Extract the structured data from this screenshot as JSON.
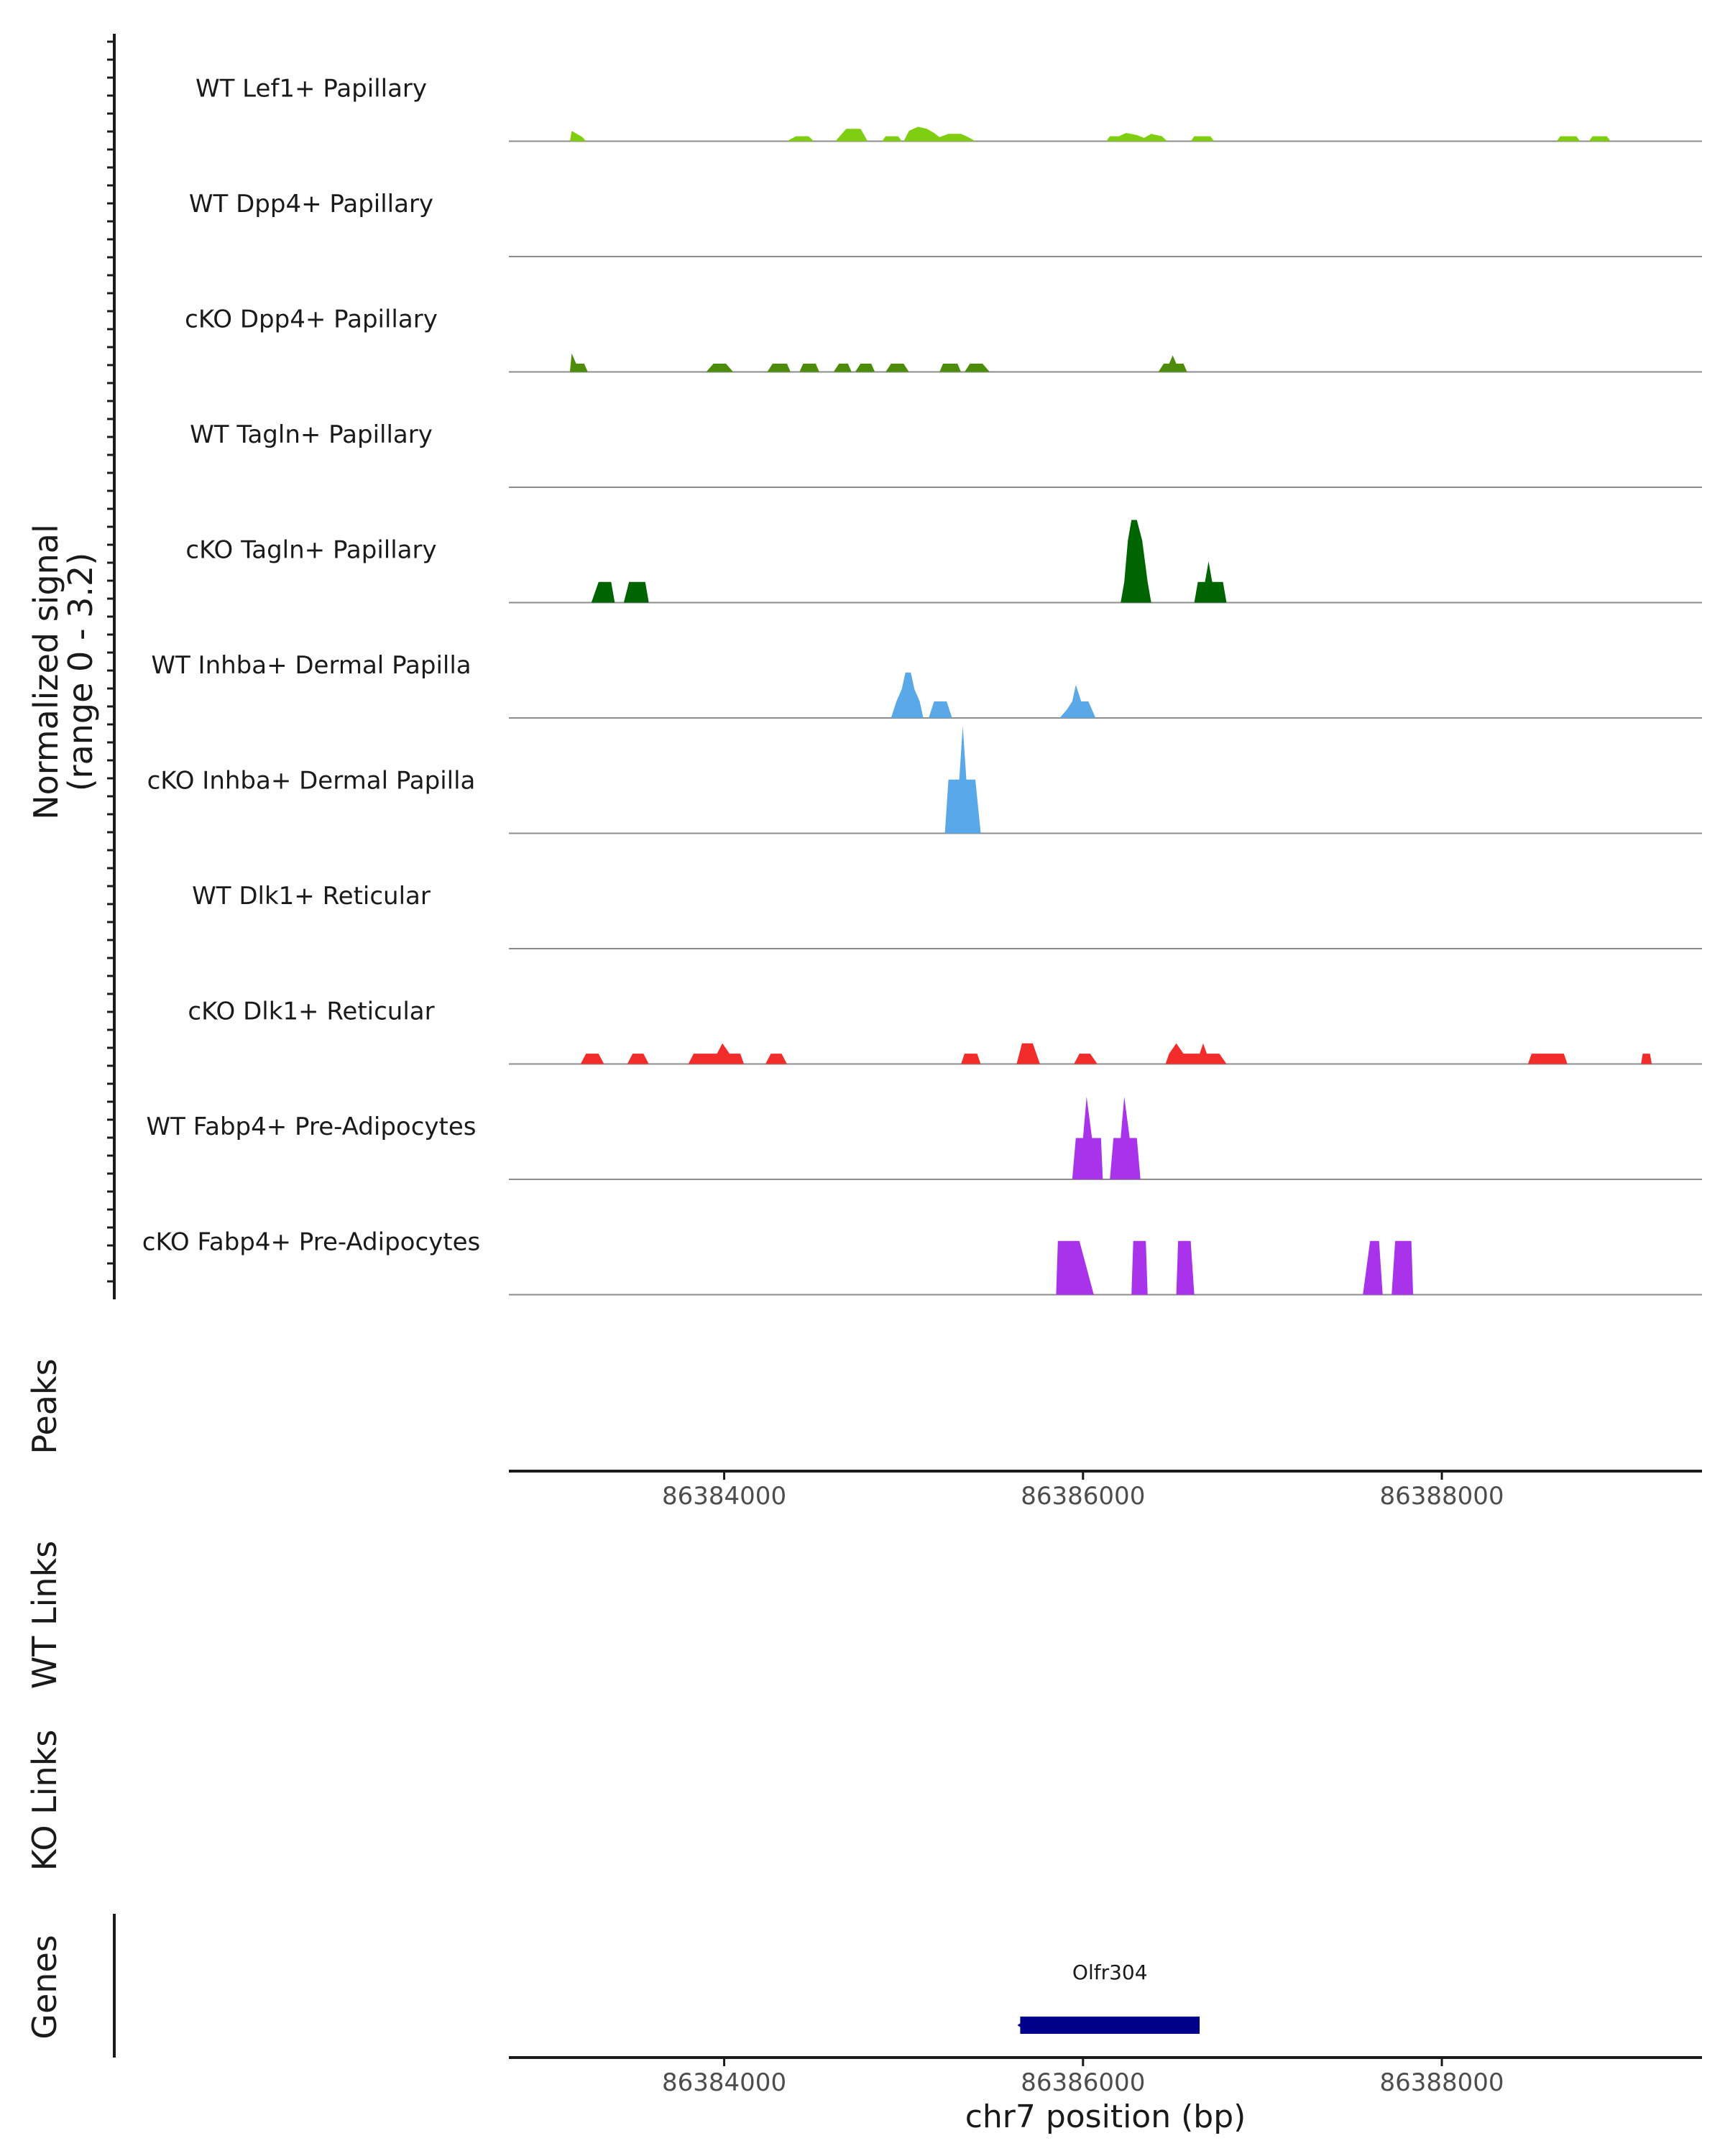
{
  "chart_data": {
    "type": "area",
    "title": "",
    "chromosome": "chr7",
    "xlim": [
      86382800,
      86389450
    ],
    "ylim": [
      0,
      3.2
    ],
    "signal_ylabel": [
      "Normalized signal",
      "(range 0 - 3.2)"
    ],
    "xlabel": "chr7 position (bp)",
    "xticks": [
      86384000,
      86386000,
      86388000
    ],
    "xtick_labels": [
      "86384000",
      "86386000",
      "86388000"
    ],
    "tracks": [
      {
        "name": "WT Lef1+ Papillary",
        "color": "#7FCE0F",
        "points": [
          [
            86383140,
            0
          ],
          [
            86383150,
            0.25
          ],
          [
            86383210,
            0.1
          ],
          [
            86383230,
            0
          ],
          [
            86384350,
            0
          ],
          [
            86384400,
            0.12
          ],
          [
            86384470,
            0.12
          ],
          [
            86384500,
            0
          ],
          [
            86384620,
            0
          ],
          [
            86384680,
            0.3
          ],
          [
            86384760,
            0.3
          ],
          [
            86384800,
            0
          ],
          [
            86384880,
            0
          ],
          [
            86384900,
            0.12
          ],
          [
            86384970,
            0.12
          ],
          [
            86384990,
            0
          ],
          [
            86385000,
            0
          ],
          [
            86385030,
            0.25
          ],
          [
            86385080,
            0.35
          ],
          [
            86385130,
            0.3
          ],
          [
            86385170,
            0.2
          ],
          [
            86385200,
            0.1
          ],
          [
            86385250,
            0.18
          ],
          [
            86385320,
            0.18
          ],
          [
            86385360,
            0.1
          ],
          [
            86385400,
            0
          ],
          [
            86386130,
            0
          ],
          [
            86386150,
            0.12
          ],
          [
            86386200,
            0.12
          ],
          [
            86386240,
            0.2
          ],
          [
            86386300,
            0.15
          ],
          [
            86386340,
            0.08
          ],
          [
            86386380,
            0.18
          ],
          [
            86386440,
            0.12
          ],
          [
            86386470,
            0
          ],
          [
            86386600,
            0
          ],
          [
            86386620,
            0.12
          ],
          [
            86386710,
            0.12
          ],
          [
            86386730,
            0
          ],
          [
            86388640,
            0
          ],
          [
            86388660,
            0.12
          ],
          [
            86388750,
            0.12
          ],
          [
            86388770,
            0
          ],
          [
            86388820,
            0
          ],
          [
            86388840,
            0.12
          ],
          [
            86388920,
            0.12
          ],
          [
            86388940,
            0
          ]
        ]
      },
      {
        "name": "WT Dpp4+ Papillary",
        "color": "#66B800",
        "points": []
      },
      {
        "name": "cKO Dpp4+ Papillary",
        "color": "#4D8C0A",
        "points": [
          [
            86383140,
            0
          ],
          [
            86383150,
            0.45
          ],
          [
            86383175,
            0.2
          ],
          [
            86383220,
            0.2
          ],
          [
            86383240,
            0
          ],
          [
            86383900,
            0
          ],
          [
            86383940,
            0.2
          ],
          [
            86384010,
            0.2
          ],
          [
            86384050,
            0
          ],
          [
            86384240,
            0
          ],
          [
            86384270,
            0.2
          ],
          [
            86384350,
            0.2
          ],
          [
            86384370,
            0
          ],
          [
            86384420,
            0
          ],
          [
            86384440,
            0.2
          ],
          [
            86384510,
            0.2
          ],
          [
            86384530,
            0
          ],
          [
            86384610,
            0
          ],
          [
            86384640,
            0.2
          ],
          [
            86384690,
            0.2
          ],
          [
            86384710,
            0
          ],
          [
            86384730,
            0
          ],
          [
            86384760,
            0.2
          ],
          [
            86384820,
            0.2
          ],
          [
            86384840,
            0
          ],
          [
            86384900,
            0
          ],
          [
            86384930,
            0.2
          ],
          [
            86385000,
            0.2
          ],
          [
            86385030,
            0
          ],
          [
            86385200,
            0
          ],
          [
            86385220,
            0.2
          ],
          [
            86385300,
            0.2
          ],
          [
            86385320,
            0
          ],
          [
            86385340,
            0
          ],
          [
            86385370,
            0.2
          ],
          [
            86385440,
            0.2
          ],
          [
            86385480,
            0
          ],
          [
            86386420,
            0
          ],
          [
            86386450,
            0.2
          ],
          [
            86386480,
            0.2
          ],
          [
            86386500,
            0.4
          ],
          [
            86386520,
            0.2
          ],
          [
            86386560,
            0.2
          ],
          [
            86386580,
            0
          ]
        ]
      },
      {
        "name": "WT Tagln+ Papillary",
        "color": "#2E7D0C",
        "points": []
      },
      {
        "name": "cKO Tagln+ Papillary",
        "color": "#006400",
        "points": [
          [
            86383260,
            0
          ],
          [
            86383300,
            0.5
          ],
          [
            86383370,
            0.5
          ],
          [
            86383390,
            0
          ],
          [
            86383440,
            0
          ],
          [
            86383470,
            0.5
          ],
          [
            86383560,
            0.5
          ],
          [
            86383580,
            0
          ],
          [
            86386210,
            0
          ],
          [
            86386230,
            0.5
          ],
          [
            86386250,
            1.5
          ],
          [
            86386270,
            2.0
          ],
          [
            86386300,
            2.0
          ],
          [
            86386330,
            1.5
          ],
          [
            86386360,
            0.5
          ],
          [
            86386380,
            0
          ],
          [
            86386620,
            0
          ],
          [
            86386640,
            0.5
          ],
          [
            86386680,
            0.5
          ],
          [
            86386700,
            1.0
          ],
          [
            86386720,
            0.5
          ],
          [
            86386780,
            0.5
          ],
          [
            86386800,
            0
          ]
        ]
      },
      {
        "name": "WT Inhba+ Dermal Papilla",
        "color": "#5AA8E8",
        "points": [
          [
            86384930,
            0
          ],
          [
            86384960,
            0.4
          ],
          [
            86384990,
            0.7
          ],
          [
            86385010,
            1.1
          ],
          [
            86385040,
            1.1
          ],
          [
            86385060,
            0.7
          ],
          [
            86385090,
            0.4
          ],
          [
            86385110,
            0
          ],
          [
            86385140,
            0
          ],
          [
            86385170,
            0.4
          ],
          [
            86385240,
            0.4
          ],
          [
            86385270,
            0
          ],
          [
            86385870,
            0
          ],
          [
            86385910,
            0.2
          ],
          [
            86385940,
            0.4
          ],
          [
            86385960,
            0.8
          ],
          [
            86385990,
            0.4
          ],
          [
            86386030,
            0.4
          ],
          [
            86386070,
            0
          ]
        ]
      },
      {
        "name": "cKO Inhba+ Dermal Papilla",
        "color": "#58A8EA",
        "points": [
          [
            86385230,
            0
          ],
          [
            86385250,
            1.3
          ],
          [
            86385310,
            1.3
          ],
          [
            86385330,
            2.6
          ],
          [
            86385350,
            1.3
          ],
          [
            86385400,
            1.3
          ],
          [
            86385430,
            0
          ]
        ]
      },
      {
        "name": "WT Dlk1+ Reticular",
        "color": "#E03030",
        "points": []
      },
      {
        "name": "cKO Dlk1+ Reticular",
        "color": "#F22B2B",
        "points": [
          [
            86383200,
            0
          ],
          [
            86383230,
            0.25
          ],
          [
            86383300,
            0.25
          ],
          [
            86383330,
            0
          ],
          [
            86383460,
            0
          ],
          [
            86383490,
            0.25
          ],
          [
            86383550,
            0.25
          ],
          [
            86383580,
            0
          ],
          [
            86383800,
            0
          ],
          [
            86383830,
            0.25
          ],
          [
            86383960,
            0.25
          ],
          [
            86383990,
            0.5
          ],
          [
            86384030,
            0.25
          ],
          [
            86384090,
            0.25
          ],
          [
            86384110,
            0
          ],
          [
            86384230,
            0
          ],
          [
            86384260,
            0.25
          ],
          [
            86384320,
            0.25
          ],
          [
            86384350,
            0
          ],
          [
            86385320,
            0
          ],
          [
            86385340,
            0.25
          ],
          [
            86385410,
            0.25
          ],
          [
            86385430,
            0
          ],
          [
            86385630,
            0
          ],
          [
            86385660,
            0.5
          ],
          [
            86385720,
            0.5
          ],
          [
            86385760,
            0
          ],
          [
            86385950,
            0
          ],
          [
            86385980,
            0.25
          ],
          [
            86386040,
            0.25
          ],
          [
            86386080,
            0
          ],
          [
            86386460,
            0
          ],
          [
            86386480,
            0.25
          ],
          [
            86386520,
            0.5
          ],
          [
            86386560,
            0.25
          ],
          [
            86386650,
            0.25
          ],
          [
            86386670,
            0.5
          ],
          [
            86386690,
            0.25
          ],
          [
            86386760,
            0.25
          ],
          [
            86386800,
            0
          ],
          [
            86388480,
            0
          ],
          [
            86388500,
            0.25
          ],
          [
            86388680,
            0.25
          ],
          [
            86388700,
            0
          ],
          [
            86389110,
            0
          ],
          [
            86389120,
            0.25
          ],
          [
            86389160,
            0.25
          ],
          [
            86389170,
            0
          ]
        ]
      },
      {
        "name": "WT Fabp4+ Pre-Adipocytes",
        "color": "#A833EA",
        "points": [
          [
            86385940,
            0
          ],
          [
            86385960,
            1.0
          ],
          [
            86386000,
            1.0
          ],
          [
            86386020,
            2.0
          ],
          [
            86386050,
            1.0
          ],
          [
            86386100,
            1.0
          ],
          [
            86386110,
            0
          ],
          [
            86386150,
            0
          ],
          [
            86386170,
            1.0
          ],
          [
            86386210,
            1.0
          ],
          [
            86386230,
            2.0
          ],
          [
            86386260,
            1.0
          ],
          [
            86386300,
            1.0
          ],
          [
            86386320,
            0
          ]
        ]
      },
      {
        "name": "cKO Fabp4+ Pre-Adipocytes",
        "color": "#A833EA",
        "points": [
          [
            86385850,
            0
          ],
          [
            86385860,
            1.3
          ],
          [
            86385980,
            1.3
          ],
          [
            86386060,
            0
          ],
          [
            86386270,
            0
          ],
          [
            86386280,
            1.3
          ],
          [
            86386350,
            1.3
          ],
          [
            86386360,
            0
          ],
          [
            86386520,
            0
          ],
          [
            86386530,
            1.3
          ],
          [
            86386600,
            1.3
          ],
          [
            86386620,
            0
          ],
          [
            86387560,
            0
          ],
          [
            86387600,
            1.3
          ],
          [
            86387650,
            1.3
          ],
          [
            86387670,
            0
          ],
          [
            86387720,
            0
          ],
          [
            86387740,
            1.3
          ],
          [
            86387830,
            1.3
          ],
          [
            86387840,
            0
          ]
        ]
      }
    ],
    "other_tracks": {
      "peaks_label": "Peaks",
      "wt_links_label": "WT Links",
      "ko_links_label": "KO Links",
      "genes_label": "Genes"
    },
    "genes": [
      {
        "name": "Olfr304",
        "start": 86385650,
        "end": 86386650,
        "color": "#00008B"
      }
    ]
  }
}
